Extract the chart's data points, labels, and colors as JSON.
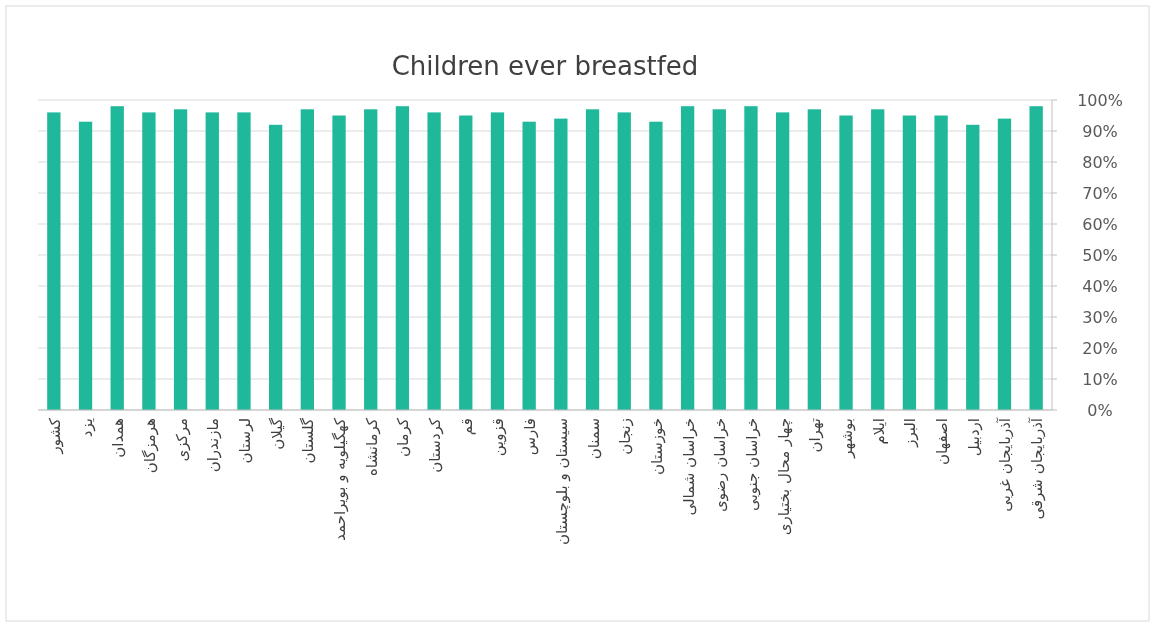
{
  "chart_data": {
    "type": "bar",
    "title": "Children ever breastfed",
    "categories": [
      "کشور",
      "یزد",
      "همدان",
      "هرمزگان",
      "مرکزی",
      "مازندران",
      "لرستان",
      "گیلان",
      "گلستان",
      "کهگیلویه و بویراحمد",
      "کرمانشاه",
      "کرمان",
      "کردستان",
      "قم",
      "قزوین",
      "فارس",
      "سیستان و بلوچستان",
      "سمنان",
      "زنجان",
      "خوزستان",
      "خراسان شمالی",
      "خراسان رضوی",
      "خراسان جنوبی",
      "چهار محال بختیاری",
      "تهران",
      "بوشهر",
      "ایلام",
      "البرز",
      "اصفهان",
      "اردبیل",
      "آذربایجان غربی",
      "آذربایجان شرقی"
    ],
    "values": [
      96,
      93,
      98,
      96,
      97,
      96,
      96,
      92,
      97,
      95,
      97,
      98,
      96,
      95,
      96,
      93,
      94,
      97,
      96,
      93,
      98,
      97,
      98,
      96,
      97,
      95,
      97,
      95,
      95,
      92,
      94,
      98
    ],
    "color": "#1fb89a",
    "ylim": [
      0,
      100
    ],
    "yticks": [
      {
        "value": 0,
        "label": "0%"
      },
      {
        "value": 10,
        "label": "10%"
      },
      {
        "value": 20,
        "label": "20%"
      },
      {
        "value": 30,
        "label": "30%"
      },
      {
        "value": 40,
        "label": "40%"
      },
      {
        "value": 50,
        "label": "50%"
      },
      {
        "value": 60,
        "label": "60%"
      },
      {
        "value": 70,
        "label": "70%"
      },
      {
        "value": 80,
        "label": "80%"
      },
      {
        "value": 90,
        "label": "90%"
      },
      {
        "value": 100,
        "label": "100%"
      }
    ],
    "grid": "y"
  }
}
